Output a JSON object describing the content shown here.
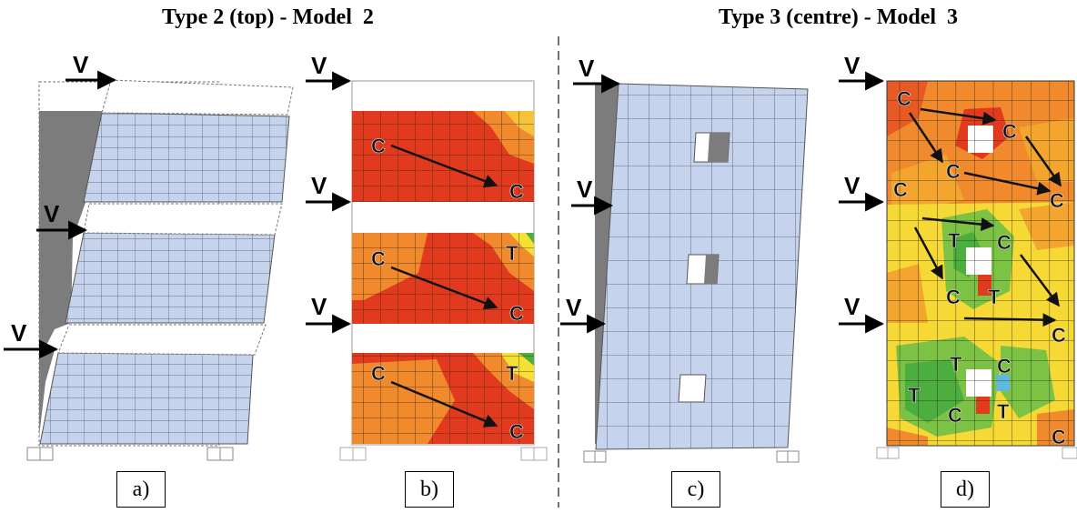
{
  "titles": {
    "left": "Type 2 (top) - Model  2",
    "right": "Type 3 (centre) - Model  3"
  },
  "captions": [
    "a)",
    "b)",
    "c)",
    "d)"
  ],
  "load_label": "V",
  "compression_label": "C",
  "tension_label": "T",
  "colors": {
    "mesh_fill": "#c5d3ec",
    "shear_wall": "#7c7c7c",
    "stress_red": "#e23a1e",
    "stress_orange": "#f08a2c",
    "stress_yellow": "#f6e034",
    "stress_green": "#4cae3e"
  }
}
